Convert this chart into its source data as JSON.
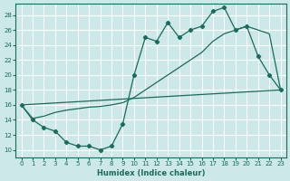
{
  "xlabel": "Humidex (Indice chaleur)",
  "bg_color": "#cce8e8",
  "grid_color": "#ffffff",
  "line_color": "#1a6b5a",
  "xlim": [
    -0.5,
    23.5
  ],
  "ylim": [
    9,
    29.5
  ],
  "xticks": [
    0,
    1,
    2,
    3,
    4,
    5,
    6,
    7,
    8,
    9,
    10,
    11,
    12,
    13,
    14,
    15,
    16,
    17,
    18,
    19,
    20,
    21,
    22,
    23
  ],
  "yticks": [
    10,
    12,
    14,
    16,
    18,
    20,
    22,
    24,
    26,
    28
  ],
  "line1_x": [
    0,
    1,
    2,
    3,
    4,
    5,
    6,
    7,
    8,
    9,
    10,
    11,
    12,
    13,
    14,
    15,
    16,
    17,
    18,
    19,
    20,
    21,
    22,
    23
  ],
  "line1_y": [
    16,
    14,
    13,
    12.5,
    11,
    10.5,
    10.5,
    10,
    10.5,
    13.5,
    20,
    25,
    24.5,
    27,
    25,
    26,
    26.5,
    28.5,
    29,
    26,
    26.5,
    22.5,
    20,
    18
  ],
  "line2_x": [
    0,
    1,
    2,
    3,
    4,
    5,
    6,
    7,
    8,
    9,
    10,
    11,
    12,
    13,
    14,
    15,
    16,
    17,
    18,
    19,
    20,
    21,
    22,
    23
  ],
  "line2_y": [
    16,
    14.2,
    14.5,
    15.0,
    15.3,
    15.5,
    15.7,
    15.8,
    16.0,
    16.3,
    17.0,
    18.0,
    19.0,
    20.0,
    21.0,
    22.0,
    23.0,
    24.5,
    25.5,
    26.0,
    26.5,
    26.0,
    25.5,
    18
  ],
  "line3_x": [
    0,
    23
  ],
  "line3_y": [
    16,
    18
  ]
}
